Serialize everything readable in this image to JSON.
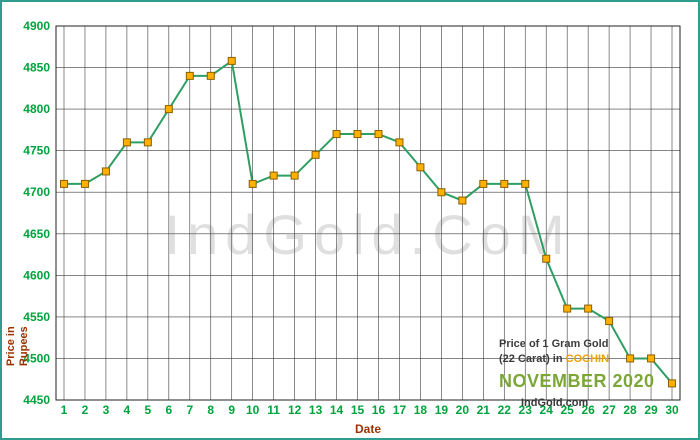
{
  "chart_data": {
    "type": "line",
    "title": "Price of 1 Gram Gold (22 Carat) in COCHIN - NOVEMBER 2020",
    "x": [
      1,
      2,
      3,
      4,
      5,
      6,
      7,
      8,
      9,
      10,
      11,
      12,
      13,
      14,
      15,
      16,
      17,
      18,
      19,
      20,
      21,
      22,
      23,
      24,
      25,
      26,
      27,
      28,
      29,
      30
    ],
    "values": [
      4710,
      4710,
      4725,
      4760,
      4760,
      4800,
      4840,
      4840,
      4858,
      4710,
      4720,
      4720,
      4745,
      4770,
      4770,
      4770,
      4760,
      4730,
      4700,
      4690,
      4710,
      4710,
      4710,
      4620,
      4560,
      4560,
      4545,
      4500,
      4500,
      4470
    ],
    "xlabel": "Date",
    "ylabel": "Price in Rupees",
    "ylim": [
      4450,
      4900
    ],
    "ytick_step": 50,
    "grid": true,
    "legend": false,
    "line_color": "#2f9e63",
    "marker_color": "#ffb000",
    "marker_border": "#8a6000",
    "tick_color": "#00a33c",
    "axis_label_color": "#993300",
    "grid_color": "#3c3c3c",
    "watermark": "IndGold.CoM"
  },
  "annotation": {
    "line1": "Price of 1 Gram Gold",
    "line2_prefix": "(22 Carat) in ",
    "line2_highlight": "COCHIN",
    "line3": "NOVEMBER 2020",
    "line4": "IndGold.com"
  },
  "frame": {
    "border_color": "#2f9e8f"
  }
}
